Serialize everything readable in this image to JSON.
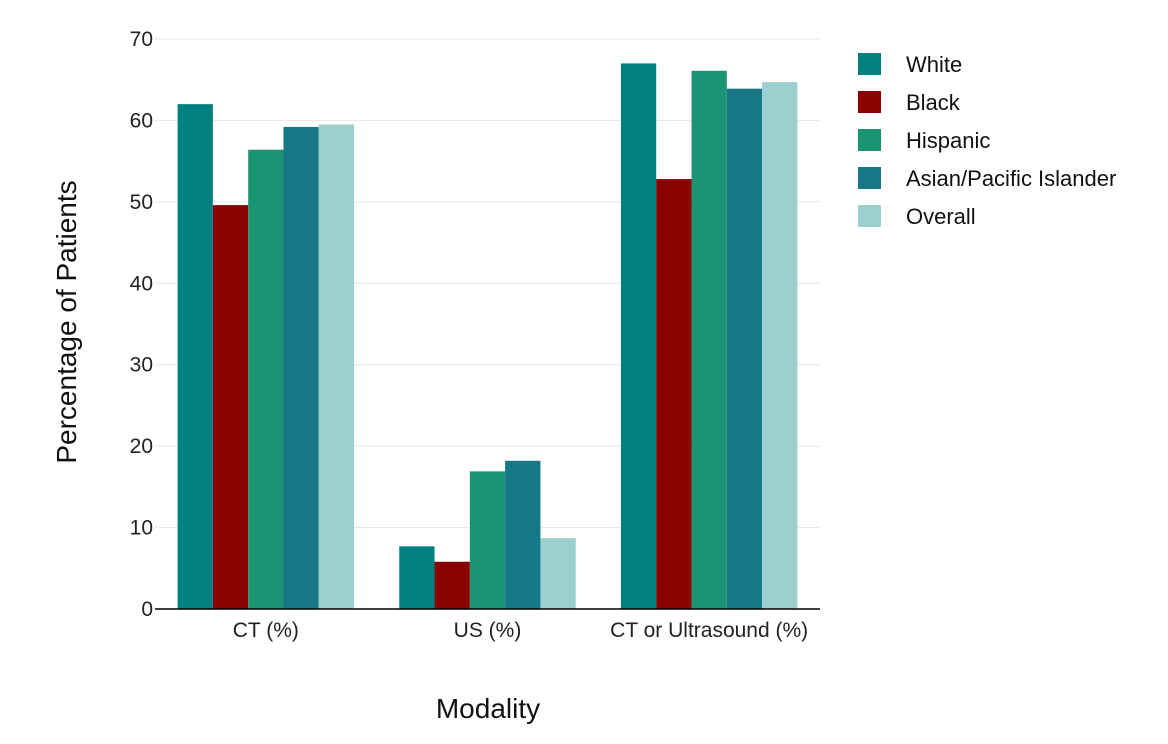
{
  "chart_data": {
    "type": "bar",
    "title": "",
    "xlabel": "Modality",
    "ylabel": "Percentage of Patients",
    "ylim": [
      0,
      70
    ],
    "yticks": [
      0,
      10,
      20,
      30,
      40,
      50,
      60,
      70
    ],
    "grid": true,
    "legend_position": "right",
    "categories": [
      "CT (%)",
      "US (%)",
      "CT or Ultrasound (%)"
    ],
    "series": [
      {
        "name": "White",
        "color": "#008080",
        "values": [
          62.0,
          7.7,
          67.0
        ]
      },
      {
        "name": "Black",
        "color": "#8B0000",
        "values": [
          49.6,
          5.8,
          52.8
        ]
      },
      {
        "name": "Hispanic",
        "color": "#1A9473",
        "values": [
          56.4,
          16.9,
          66.1
        ]
      },
      {
        "name": "Asian/Pacific Islander",
        "color": "#167786",
        "values": [
          59.2,
          18.2,
          63.9
        ]
      },
      {
        "name": "Overall",
        "color": "#9CD0D0",
        "values": [
          59.5,
          8.7,
          64.7
        ]
      }
    ]
  }
}
